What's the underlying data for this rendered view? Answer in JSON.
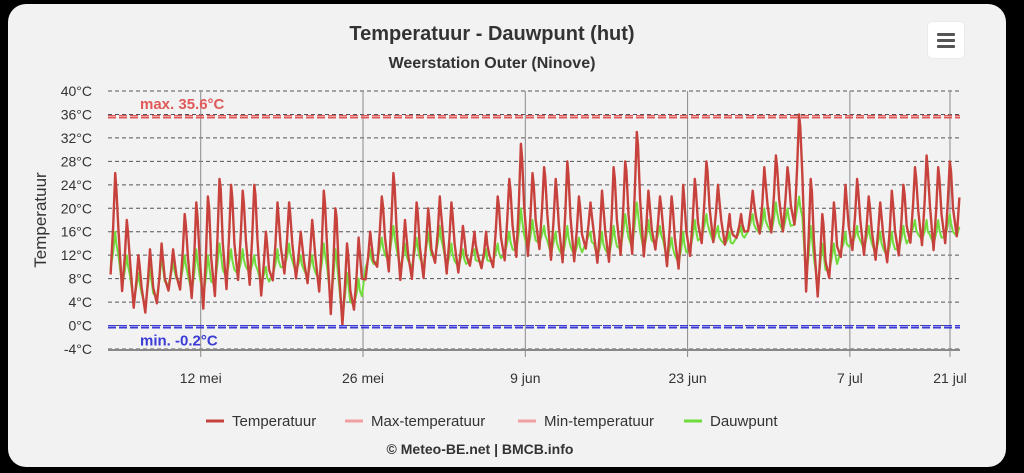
{
  "chart_data": {
    "type": "line",
    "title": "Temperatuur - Dauwpunt (hut)",
    "subtitle": "Weerstation Outer (Ninove)",
    "ylabel": "Temperatuur",
    "credit": "© Meteo-BE.net | BMCB.info",
    "ylim": [
      -4,
      40
    ],
    "yticks": [
      "40°C",
      "36°C",
      "32°C",
      "28°C",
      "24°C",
      "20°C",
      "16°C",
      "12°C",
      "8°C",
      "4°C",
      "0°C",
      "-4°C"
    ],
    "ytick_values": [
      40,
      36,
      32,
      28,
      24,
      20,
      16,
      12,
      8,
      4,
      0,
      -4
    ],
    "xlim": [
      0,
      73.5
    ],
    "xticks": [
      {
        "label": "12 mei",
        "day": 8
      },
      {
        "label": "26 mei",
        "day": 22
      },
      {
        "label": "9 jun",
        "day": 36
      },
      {
        "label": "23 jun",
        "day": 50
      },
      {
        "label": "7 jul",
        "day": 64
      },
      {
        "label": "21 jul",
        "day": 78
      }
    ],
    "grid": true,
    "legend_position": "bottom",
    "plot_lines": [
      {
        "label": "max. 35.6°C",
        "value": 35.6,
        "color": "#e05a5a"
      },
      {
        "label": "min. -0.2°C",
        "value": -0.2,
        "color": "#3b3bd6"
      }
    ],
    "series": [
      {
        "name": "Temperatuur",
        "color": "#c8423d",
        "daily_max": [
          26,
          18,
          12,
          13,
          14,
          13,
          19,
          21,
          22,
          25,
          24,
          23,
          24,
          16,
          21,
          21,
          16,
          18,
          23,
          20,
          14,
          15,
          16,
          22,
          26,
          18,
          21,
          20,
          22,
          21,
          17,
          16,
          16,
          22,
          25,
          31,
          26,
          27,
          25,
          28,
          22,
          21,
          23,
          27,
          28,
          33,
          23,
          22,
          22,
          24,
          25,
          28,
          24,
          19,
          19,
          23,
          27,
          29,
          27,
          36,
          25,
          19,
          21,
          24,
          25,
          22,
          21,
          23,
          24,
          27,
          29,
          27,
          28,
          28,
          27,
          29,
          30,
          25,
          28,
          22
        ],
        "daily_min": [
          9,
          6,
          3,
          2,
          4,
          6,
          6,
          5,
          3,
          5,
          6,
          8,
          7,
          5,
          8,
          9,
          8,
          7,
          6,
          2,
          0,
          3,
          8,
          10,
          9,
          8,
          8,
          8,
          11,
          9,
          9,
          10,
          10,
          10,
          11,
          12,
          12,
          13,
          11,
          11,
          11,
          13,
          11,
          11,
          12,
          12,
          12,
          13,
          10,
          10,
          12,
          14,
          14,
          14,
          15,
          16,
          16,
          16,
          16,
          17,
          6,
          5,
          8,
          12,
          13,
          12,
          11,
          11,
          12,
          14,
          14,
          13,
          14,
          15,
          13,
          12,
          13,
          14,
          15,
          14
        ]
      },
      {
        "name": "Max-temperatuur",
        "color": "#f0a0a0"
      },
      {
        "name": "Min-temperatuur",
        "color": "#f0a0a0"
      },
      {
        "name": "Dauwpunt",
        "color": "#6fdc3c",
        "daily_max": [
          16,
          12,
          9,
          10,
          12,
          11,
          12,
          13,
          12,
          14,
          13,
          13,
          12,
          10,
          13,
          14,
          12,
          12,
          14,
          13,
          9,
          8,
          13,
          15,
          17,
          14,
          15,
          16,
          17,
          14,
          13,
          13,
          13,
          14,
          16,
          20,
          18,
          17,
          16,
          17,
          15,
          16,
          16,
          17,
          19,
          21,
          18,
          17,
          15,
          16,
          18,
          19,
          17,
          16,
          17,
          19,
          20,
          21,
          20,
          22,
          17,
          14,
          14,
          16,
          17,
          17,
          16,
          16,
          17,
          18,
          18,
          18,
          19,
          18,
          18,
          19,
          20,
          18,
          19,
          17
        ],
        "daily_min": [
          10,
          7,
          4,
          3,
          5,
          7,
          7,
          6,
          5,
          7,
          8,
          9,
          9,
          7,
          9,
          10,
          9,
          8,
          8,
          4,
          1,
          4,
          10,
          11,
          11,
          10,
          10,
          10,
          12,
          10,
          10,
          11,
          11,
          11,
          12,
          13,
          13,
          14,
          12,
          12,
          12,
          14,
          12,
          12,
          13,
          13,
          13,
          14,
          11,
          11,
          13,
          15,
          14,
          14,
          15,
          16,
          16,
          16,
          16,
          17,
          8,
          7,
          9,
          13,
          14,
          13,
          12,
          12,
          13,
          15,
          15,
          14,
          15,
          15,
          14,
          13,
          14,
          15,
          16,
          15
        ]
      }
    ]
  }
}
